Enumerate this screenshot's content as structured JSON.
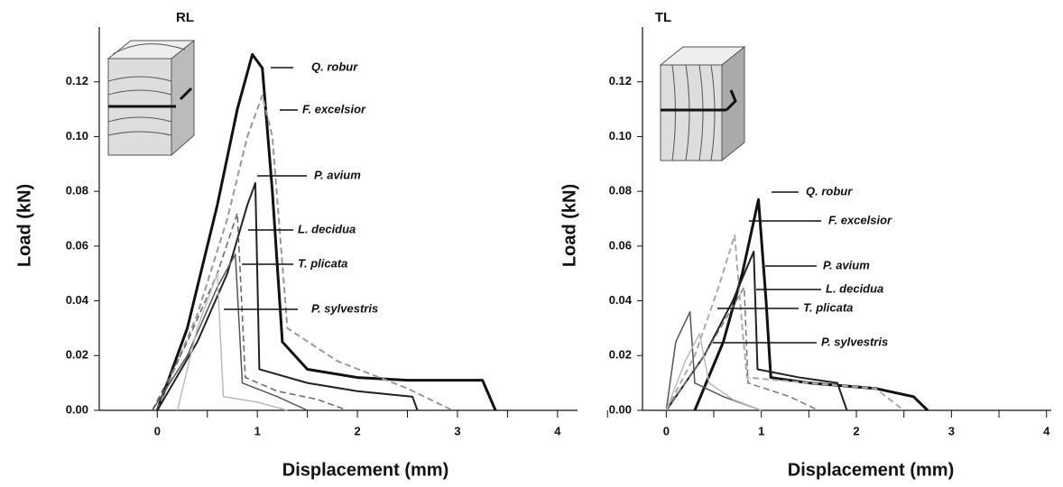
{
  "chart_data": [
    {
      "type": "line",
      "title": "RL",
      "x_label": "Displacement (mm)",
      "y_label": "Load (kN)",
      "xlim": [
        -0.58,
        4.2
      ],
      "ylim": [
        0,
        0.14
      ],
      "xticks": [
        0,
        1,
        2,
        3,
        4
      ],
      "yticks": [
        {
          "value": 0,
          "label": "0.00"
        },
        0.02,
        0.04,
        0.06,
        0.08,
        {
          "value": 0.1,
          "label": "0.10"
        },
        0.12
      ],
      "series": [
        {
          "name": "Q. robur",
          "color": "#111111",
          "width": 3,
          "dashed": false,
          "x": [
            0,
            0.3,
            0.6,
            0.8,
            0.95,
            1.05,
            1.15,
            1.25,
            1.5,
            2,
            2.5,
            3,
            3.25,
            3.38
          ],
          "values": [
            0,
            0.03,
            0.075,
            0.11,
            0.13,
            0.125,
            0.08,
            0.025,
            0.015,
            0.012,
            0.011,
            0.011,
            0.011,
            0
          ]
        },
        {
          "name": "F. excelsior",
          "color": "#999999",
          "width": 2,
          "dashed": true,
          "x": [
            0,
            0.4,
            0.7,
            0.9,
            1.05,
            1.15,
            1.3,
            1.8,
            2.5,
            2.95
          ],
          "values": [
            0,
            0.035,
            0.07,
            0.1,
            0.115,
            0.1,
            0.03,
            0.018,
            0.008,
            0
          ]
        },
        {
          "name": "P. avium",
          "color": "#222222",
          "width": 2,
          "dashed": false,
          "x": [
            0,
            0.4,
            0.7,
            0.9,
            0.98,
            1.02,
            1.5,
            2,
            2.55,
            2.6
          ],
          "values": [
            0,
            0.025,
            0.05,
            0.075,
            0.083,
            0.015,
            0.01,
            0.007,
            0.005,
            0
          ]
        },
        {
          "name": "L. decidua",
          "color": "#666666",
          "width": 1.5,
          "dashed": true,
          "x": [
            -0.05,
            0.3,
            0.6,
            0.8,
            0.88,
            1.2,
            1.6,
            1.9
          ],
          "values": [
            0,
            0.025,
            0.05,
            0.072,
            0.012,
            0.007,
            0.004,
            0
          ]
        },
        {
          "name": "T. plicata",
          "color": "#555555",
          "width": 1.5,
          "dashed": false,
          "x": [
            -0.05,
            0.3,
            0.6,
            0.78,
            0.85,
            1.2,
            1.5
          ],
          "values": [
            0,
            0.02,
            0.045,
            0.057,
            0.01,
            0.005,
            0
          ]
        },
        {
          "name": "P. sylvestris",
          "color": "#bbbbbb",
          "width": 1.5,
          "dashed": false,
          "x": [
            0.2,
            0.4,
            0.6,
            0.66,
            1,
            1.3
          ],
          "values": [
            0,
            0.03,
            0.05,
            0.005,
            0.003,
            0
          ]
        }
      ]
    },
    {
      "type": "line",
      "title": "TL",
      "x_label": "Displacement (mm)",
      "y_label": "Load (kN)",
      "xlim": [
        -0.25,
        4.05
      ],
      "ylim": [
        0,
        0.14
      ],
      "xticks": [
        0,
        1,
        2,
        3,
        4
      ],
      "yticks": [
        {
          "value": 0,
          "label": "0.00"
        },
        0.02,
        0.04,
        0.06,
        0.08,
        {
          "value": 0.1,
          "label": "0.10"
        },
        0.12
      ],
      "series": [
        {
          "name": "Q. robur",
          "color": "#111111",
          "width": 3,
          "dashed": false,
          "x": [
            0.3,
            0.6,
            0.8,
            0.97,
            1.05,
            1.1,
            1.5,
            2.2,
            2.6,
            2.75
          ],
          "values": [
            0,
            0.025,
            0.05,
            0.077,
            0.04,
            0.012,
            0.01,
            0.008,
            0.005,
            0
          ]
        },
        {
          "name": "F. excelsior",
          "color": "#aaaaaa",
          "width": 2,
          "dashed": true,
          "x": [
            0,
            0.3,
            0.55,
            0.72,
            0.8,
            0.85,
            1.5,
            2.2,
            2.5
          ],
          "values": [
            0,
            0.02,
            0.045,
            0.064,
            0.03,
            0.012,
            0.01,
            0.008,
            0
          ]
        },
        {
          "name": "P. avium",
          "color": "#222222",
          "width": 2,
          "dashed": false,
          "x": [
            0,
            0.4,
            0.7,
            0.92,
            0.96,
            1.4,
            1.8,
            1.9
          ],
          "values": [
            0,
            0.02,
            0.04,
            0.058,
            0.015,
            0.012,
            0.01,
            0
          ]
        },
        {
          "name": "L. decidua",
          "color": "#777777",
          "width": 1.5,
          "dashed": true,
          "x": [
            0,
            0.4,
            0.82,
            0.86,
            1.3,
            1.6
          ],
          "values": [
            0,
            0.02,
            0.045,
            0.01,
            0.005,
            0
          ]
        },
        {
          "name": "T. plicata",
          "color": "#555555",
          "width": 1.5,
          "dashed": false,
          "x": [
            0,
            0.1,
            0.25,
            0.3,
            0.6,
            1
          ],
          "values": [
            0,
            0.025,
            0.036,
            0.01,
            0.005,
            0
          ]
        },
        {
          "name": "P. sylvestris",
          "color": "#bbbbbb",
          "width": 1.5,
          "dashed": false,
          "x": [
            0,
            0.2,
            0.35,
            0.45,
            0.7,
            1
          ],
          "values": [
            0,
            0.018,
            0.028,
            0.01,
            0.004,
            0
          ]
        }
      ]
    }
  ]
}
